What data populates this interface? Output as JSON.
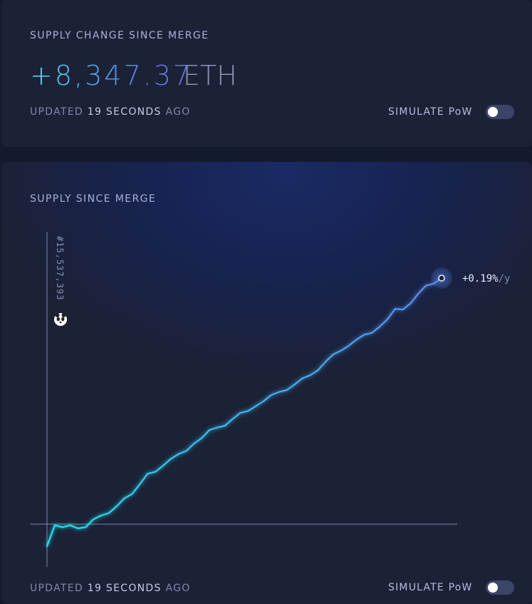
{
  "supply_card": {
    "title": "SUPPLY CHANGE SINCE MERGE",
    "value": "+8,347.37",
    "unit": "ETH",
    "updated_prefix": "UPDATED",
    "updated_amount": "19 SECONDS",
    "updated_suffix": "AGO",
    "simulate_label": "SIMULATE PoW",
    "simulate_on": false
  },
  "chart_card": {
    "title": "SUPPLY SINCE MERGE",
    "updated_prefix": "UPDATED",
    "updated_amount": "19 SECONDS",
    "updated_suffix": "AGO",
    "simulate_label": "SIMULATE PoW",
    "simulate_on": false
  },
  "chart_data": {
    "type": "line",
    "title": "SUPPLY SINCE MERGE",
    "merge_block_label": "#15,537,393",
    "end_annotation": "+0.19%/y",
    "series": [
      {
        "values": [
          -3.6,
          -0.2,
          -0.5,
          -0.2,
          -0.7,
          -0.5,
          0.8,
          1.4,
          1.8,
          2.9,
          4.2,
          4.9,
          6.5,
          8.2,
          8.5,
          9.5,
          10.6,
          11.4,
          11.9,
          13.1,
          14.0,
          15.3,
          15.7,
          16.0,
          17.1,
          18.1,
          18.4,
          19.2,
          20.0,
          21.0,
          21.5,
          21.8,
          22.7,
          23.7,
          24.2,
          25.0,
          26.4,
          27.6,
          28.2,
          29.0,
          30.0,
          30.8,
          31.1,
          32.1,
          33.3,
          35.0,
          34.9,
          35.9,
          37.5,
          38.8,
          39.1,
          40.0
        ],
        "color_start": "#22e3ef",
        "color_end": "#5b8bf0"
      }
    ],
    "grid": false,
    "baseline": 0,
    "toggle_state": "off"
  },
  "icons": {
    "merge_marker": "panda-icon",
    "end_point": "circle-dot-icon"
  }
}
